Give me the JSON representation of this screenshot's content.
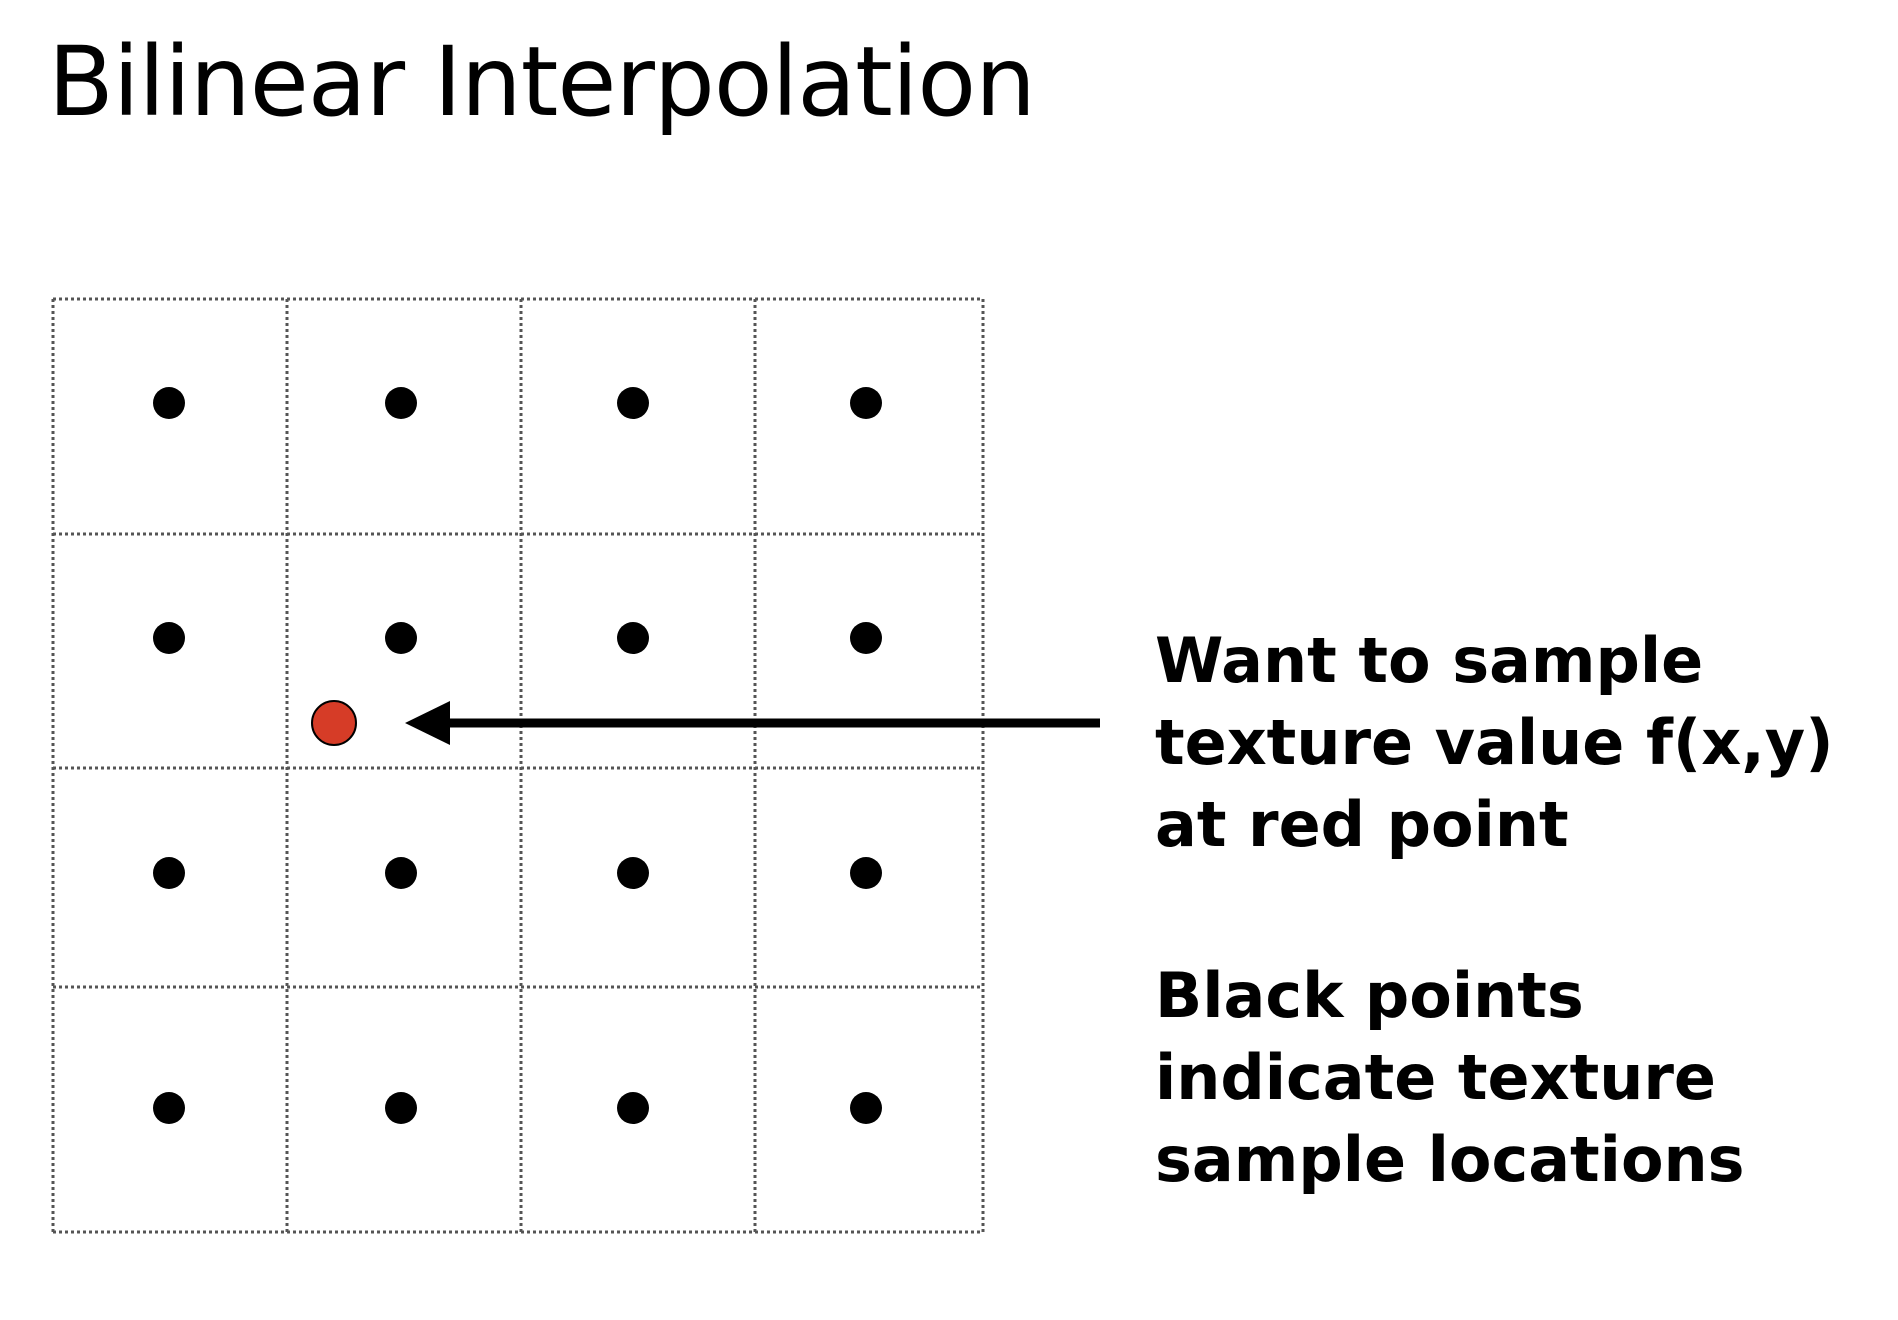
{
  "title": "Bilinear Interpolation",
  "captions": {
    "query": "Want to sample texture value f(x,y) at red point",
    "samples": "Black points indicate texture sample locations"
  },
  "grid": {
    "cols": 4,
    "rows": 4,
    "line_style": "dotted",
    "line_color": "#555555"
  },
  "sample_points": {
    "color": "#000000",
    "layout": "centers of all 4x4 grid cells"
  },
  "query_point": {
    "color": "#d63c27",
    "outline": "#000000"
  },
  "arrow": {
    "color": "#000000",
    "direction": "points left toward red point"
  }
}
